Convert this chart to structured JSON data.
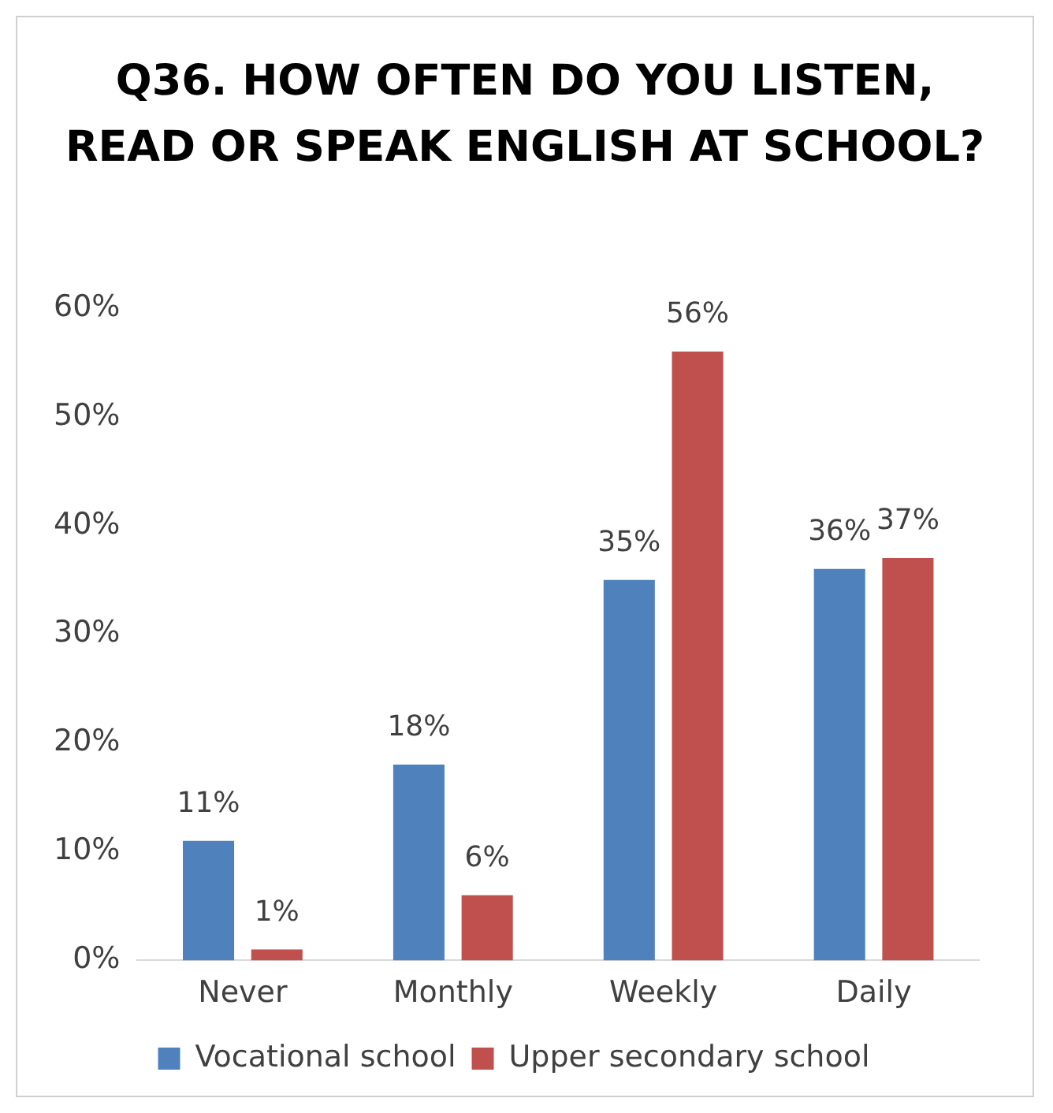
{
  "chart_data": {
    "type": "bar",
    "title": "Q36. HOW OFTEN DO YOU LISTEN, READ OR SPEAK ENGLISH AT SCHOOL?",
    "categories": [
      "Never",
      "Monthly",
      "Weekly",
      "Daily"
    ],
    "series": [
      {
        "name": "Vocational school",
        "color": "#4f81bd",
        "values": [
          11,
          18,
          35,
          36
        ],
        "value_labels": [
          "11%",
          "18%",
          "35%",
          "36%"
        ]
      },
      {
        "name": "Upper secondary school",
        "color": "#c0504d",
        "values": [
          1,
          6,
          56,
          37
        ],
        "value_labels": [
          "1%",
          "6%",
          "56%",
          "37%"
        ]
      }
    ],
    "ylim": [
      0,
      60
    ],
    "yticks": [
      {
        "value": 0,
        "label": "0%"
      },
      {
        "value": 10,
        "label": "10%"
      },
      {
        "value": 20,
        "label": "20%"
      },
      {
        "value": 30,
        "label": "30%"
      },
      {
        "value": 40,
        "label": "40%"
      },
      {
        "value": 50,
        "label": "50%"
      },
      {
        "value": 60,
        "label": "60%"
      }
    ],
    "grid": false,
    "legend": "bottom"
  }
}
